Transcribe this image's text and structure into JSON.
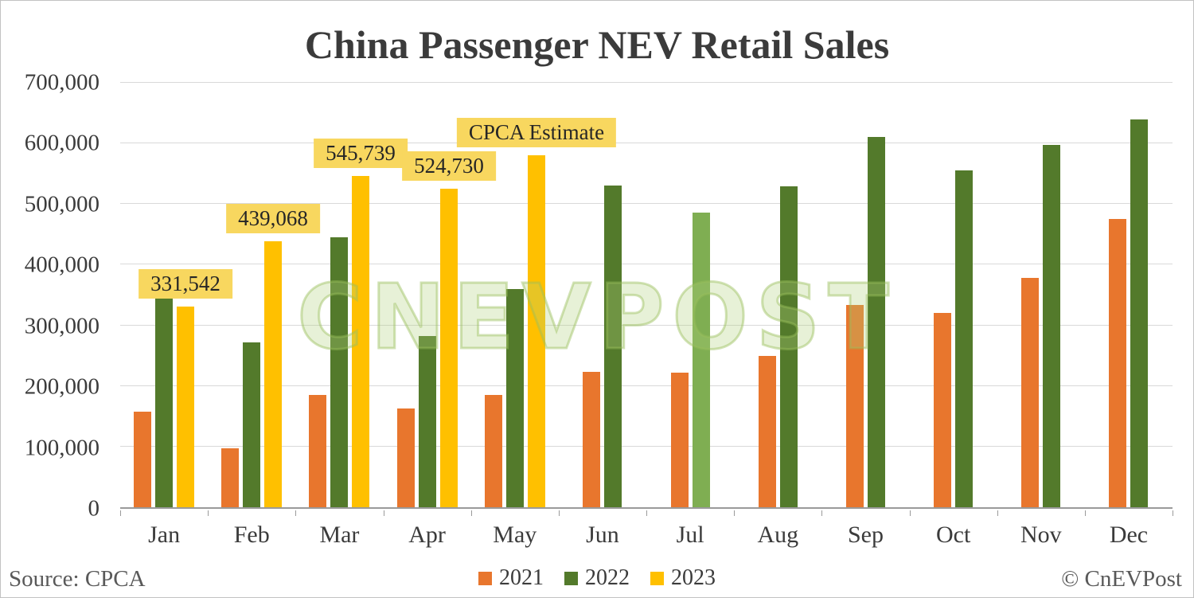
{
  "title": "China Passenger NEV Retail Sales",
  "source": "Source: CPCA",
  "copyright": "© CnEVPost",
  "watermark": "CnEVPost",
  "legend": [
    {
      "label": "2021",
      "color": "#E8762D"
    },
    {
      "label": "2022",
      "color": "#537A2B"
    },
    {
      "label": "2023",
      "color": "#FFC000"
    }
  ],
  "chart_data": {
    "type": "bar",
    "title": "China Passenger NEV Retail Sales",
    "xlabel": "",
    "ylabel": "",
    "grid": true,
    "legend_position": "bottom",
    "ylim": [
      0,
      700000
    ],
    "ytick_step": 100000,
    "yticks": [
      "0",
      "100,000",
      "200,000",
      "300,000",
      "400,000",
      "500,000",
      "600,000",
      "700,000"
    ],
    "categories": [
      "Jan",
      "Feb",
      "Mar",
      "Apr",
      "May",
      "Jun",
      "Jul",
      "Aug",
      "Sep",
      "Oct",
      "Nov",
      "Dec"
    ],
    "series": [
      {
        "name": "2021",
        "color": "#E8762D",
        "values": [
          158000,
          97000,
          185000,
          163000,
          185000,
          223000,
          222000,
          249000,
          334000,
          321000,
          378000,
          475000
        ]
      },
      {
        "name": "2022",
        "color": "#537A2B",
        "overrides": {
          "Jul": "#7FAE52"
        },
        "values": [
          347000,
          272000,
          445000,
          282000,
          360000,
          531000,
          486000,
          529000,
          611000,
          556000,
          598000,
          640000
        ]
      },
      {
        "name": "2023",
        "color": "#FFC000",
        "values": [
          331542,
          439068,
          545739,
          524730,
          580000,
          null,
          null,
          null,
          null,
          null,
          null,
          null
        ]
      }
    ],
    "annotations": [
      {
        "month": "Jan",
        "series": "2023",
        "text": "331,542"
      },
      {
        "month": "Feb",
        "series": "2023",
        "text": "439,068"
      },
      {
        "month": "Mar",
        "series": "2023",
        "text": "545,739"
      },
      {
        "month": "Apr",
        "series": "2023",
        "text": "524,730"
      },
      {
        "month": "May",
        "series": "2023",
        "text": "CPCA Estimate"
      }
    ]
  }
}
